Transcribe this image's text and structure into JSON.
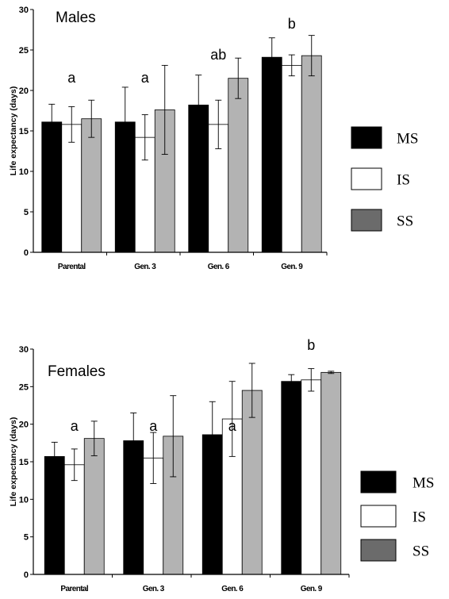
{
  "colors": {
    "MS": "#000000",
    "IS": "#ffffff",
    "SS": "#b3b3b3",
    "SS_legend": "#6b6b6b"
  },
  "legend": [
    "MS",
    "IS",
    "SS"
  ],
  "chart_data": [
    {
      "type": "bar",
      "title": "Males",
      "ylabel": "Life expectancy (days)",
      "xlabel": "",
      "ylim": [
        0,
        30
      ],
      "yticks": [
        0,
        5,
        10,
        15,
        20,
        25,
        30
      ],
      "categories": [
        "Parental",
        "Gen. 3",
        "Gen. 6",
        "Gen. 9"
      ],
      "series": [
        {
          "name": "MS",
          "values": [
            16.1,
            16.1,
            18.2,
            24.1
          ],
          "errors": [
            2.2,
            4.3,
            3.7,
            2.4
          ]
        },
        {
          "name": "IS",
          "values": [
            15.8,
            14.2,
            15.8,
            23.1
          ],
          "errors": [
            2.2,
            2.8,
            3.0,
            1.3
          ]
        },
        {
          "name": "SS",
          "values": [
            16.5,
            17.6,
            21.5,
            24.3
          ],
          "errors": [
            2.3,
            5.5,
            2.5,
            2.5
          ]
        }
      ],
      "group_labels": [
        "a",
        "a",
        "ab",
        "b"
      ],
      "grid": false,
      "legend_position": "right"
    },
    {
      "type": "bar",
      "title": "Females",
      "ylabel": "Life expectancy (days)",
      "xlabel": "",
      "ylim": [
        0,
        30
      ],
      "yticks": [
        0,
        5,
        10,
        15,
        20,
        25,
        30
      ],
      "categories": [
        "Parental",
        "Gen. 3",
        "Gen. 6",
        "Gen. 9"
      ],
      "series": [
        {
          "name": "MS",
          "values": [
            15.7,
            17.8,
            18.6,
            25.7
          ],
          "errors": [
            1.9,
            3.7,
            4.4,
            0.9
          ]
        },
        {
          "name": "IS",
          "values": [
            14.6,
            15.5,
            20.7,
            25.9
          ],
          "errors": [
            2.1,
            3.4,
            5.0,
            1.5
          ]
        },
        {
          "name": "SS",
          "values": [
            18.1,
            18.4,
            24.5,
            26.9
          ],
          "errors": [
            2.3,
            5.4,
            3.6,
            0.15
          ]
        }
      ],
      "group_labels": [
        "a",
        "a",
        "a",
        "b"
      ],
      "grid": false,
      "legend_position": "right"
    }
  ]
}
